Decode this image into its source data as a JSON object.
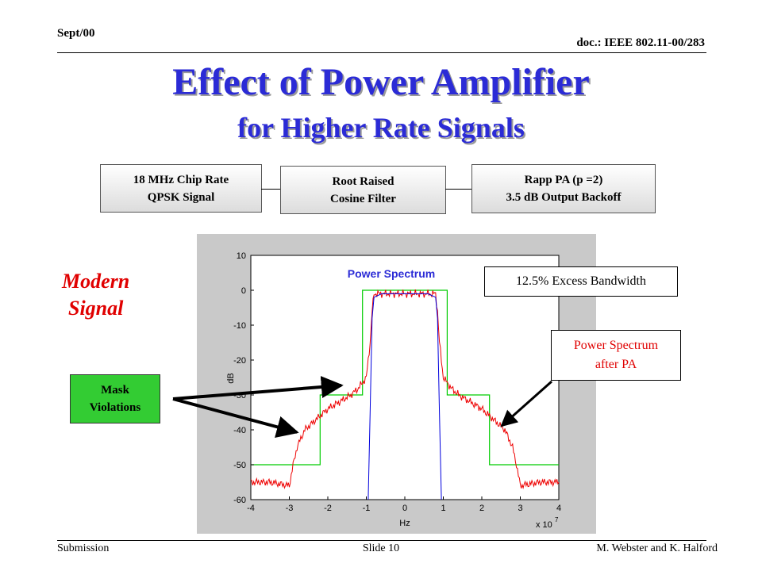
{
  "header": {
    "date": "Sept/00",
    "doc": "doc.: IEEE 802.11-00/283"
  },
  "title": {
    "line1": "Effect of Power Amplifier",
    "line2": "for Higher Rate Signals"
  },
  "blocks": [
    {
      "line1": "18 MHz Chip Rate",
      "line2": "QPSK Signal"
    },
    {
      "line1": "Root Raised",
      "line2": "Cosine Filter"
    },
    {
      "line1": "Rapp PA (p =2)",
      "line2": "3.5 dB Output Backoff"
    }
  ],
  "side_label": {
    "line1": "Modern",
    "line2": "Signal"
  },
  "mask_label": {
    "line1": "Mask",
    "line2": "Violations"
  },
  "callouts": {
    "excess": "12.5%  Excess Bandwidth",
    "after_pa_line1": "Power Spectrum",
    "after_pa_line2": "after PA"
  },
  "chart_data": {
    "type": "line",
    "title": "Power Spectrum",
    "xlabel": "Hz",
    "ylabel": "dB",
    "x_multiplier": "x 10",
    "x_multiplier_exp": "7",
    "xlim": [
      -4,
      4
    ],
    "ylim": [
      -60,
      10
    ],
    "xticks": [
      "-4",
      "-3",
      "-2",
      "-1",
      "0",
      "1",
      "2",
      "3",
      "4"
    ],
    "yticks": [
      "10",
      "0",
      "-10",
      "-20",
      "-30",
      "-40",
      "-50",
      "-60"
    ],
    "grid": false,
    "colors": {
      "mask": "#00cc00",
      "spectrum": "#0000dd",
      "after_pa": "#ee0000"
    },
    "series": [
      {
        "role": "mask",
        "x": [
          -4,
          -2.2,
          -2.2,
          -1.1,
          -1.1,
          1.1,
          1.1,
          2.2,
          2.2,
          4
        ],
        "y": [
          -50,
          -50,
          -30,
          -30,
          0,
          0,
          -30,
          -30,
          -50,
          -50
        ]
      },
      {
        "role": "spectrum",
        "x": [
          -0.95,
          -0.9,
          -0.85,
          -0.8,
          -0.6,
          -0.2,
          0.2,
          0.6,
          0.8,
          0.85,
          0.9,
          0.95
        ],
        "y": [
          -60,
          -35,
          -8,
          -2,
          -1,
          -1,
          -1,
          -1,
          -2,
          -8,
          -35,
          -60
        ]
      },
      {
        "role": "after_pa",
        "x": [
          -4,
          -3.5,
          -3.0,
          -2.9,
          -2.8,
          -2.6,
          -2.4,
          -2.2,
          -2.0,
          -1.7,
          -1.4,
          -1.2,
          -1.0,
          -0.9,
          -0.85,
          -0.8,
          0,
          0.8,
          0.85,
          0.9,
          1.0,
          1.2,
          1.4,
          1.7,
          2.0,
          2.2,
          2.4,
          2.6,
          2.8,
          2.9,
          3.0,
          3.5,
          4
        ],
        "y": [
          -55,
          -55,
          -56,
          -50,
          -45,
          -40,
          -38,
          -36,
          -34,
          -32,
          -30,
          -28,
          -25,
          -15,
          -6,
          -1,
          -1,
          -1,
          -6,
          -15,
          -25,
          -28,
          -30,
          -32,
          -34,
          -36,
          -38,
          -40,
          -45,
          -50,
          -56,
          -55,
          -55
        ]
      }
    ]
  },
  "footer": {
    "left": "Submission",
    "center": "Slide 10",
    "right": "M. Webster and K. Halford"
  }
}
